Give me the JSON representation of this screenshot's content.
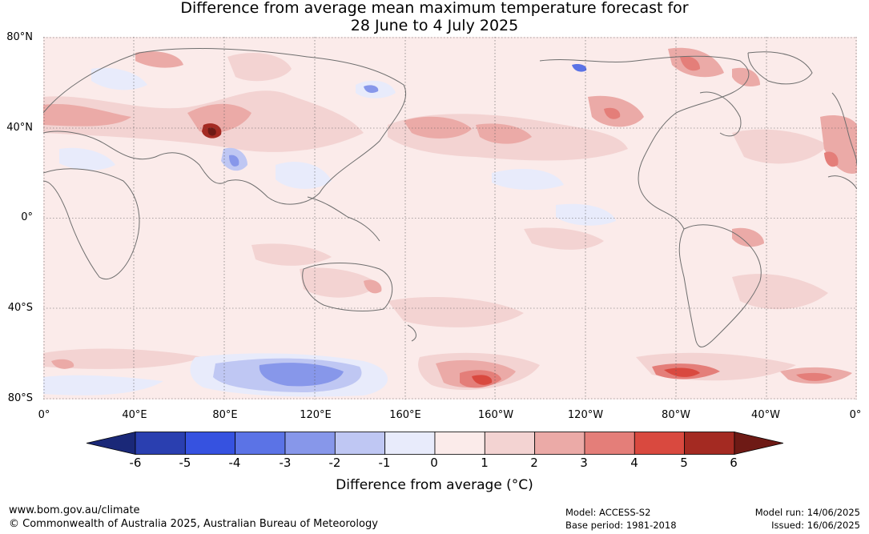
{
  "title": {
    "line1": "Difference from average mean maximum temperature forecast for",
    "line2": "28 June to 4 July 2025"
  },
  "map": {
    "lat_labels": [
      "80°N",
      "40°N",
      "0°",
      "40°S",
      "80°S"
    ],
    "lon_labels": [
      "0°",
      "40°E",
      "80°E",
      "120°E",
      "160°E",
      "160°W",
      "120°W",
      "80°W",
      "40°W",
      "0°"
    ],
    "gridline_color": "#5a5a5a",
    "coastline_color": "#6e6e6e"
  },
  "colorbar": {
    "ticks": [
      "-6",
      "-5",
      "-4",
      "-3",
      "-2",
      "-1",
      "0",
      "1",
      "2",
      "3",
      "4",
      "5",
      "6"
    ],
    "colors": [
      "#1a2878",
      "#2a3fb0",
      "#3652e0",
      "#5b73e6",
      "#8797ea",
      "#bfc7f3",
      "#e8ebfb",
      "#fbebea",
      "#f3d3d2",
      "#ebaaa7",
      "#e47e79",
      "#d9493f",
      "#a42a22",
      "#6e1a15"
    ],
    "label": "Difference from average (°C)"
  },
  "footer": {
    "website": "www.bom.gov.au/climate",
    "copyright": "© Commonwealth of Australia 2025, Australian Bureau of Meteorology",
    "model": "Model: ACCESS-S2",
    "base_period": "Base period: 1981-2018",
    "model_run": "Model run: 14/06/2025",
    "issued": "Issued: 16/06/2025"
  }
}
